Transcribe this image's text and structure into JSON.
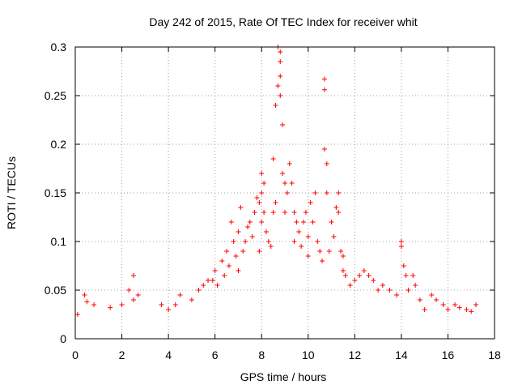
{
  "chart_data": {
    "type": "scatter",
    "title": "Day 242 of 2015, Rate Of TEC Index for receiver whit",
    "xlabel": "GPS time / hours",
    "ylabel": "ROTI / TECUs",
    "xlim": [
      0,
      18
    ],
    "ylim": [
      0,
      0.3
    ],
    "x_ticks": [
      0,
      2,
      4,
      6,
      8,
      10,
      12,
      14,
      16,
      18
    ],
    "y_ticks": [
      0,
      0.05,
      0.1,
      0.15,
      0.2,
      0.25,
      0.3
    ],
    "x_tick_labels": [
      "0",
      "2",
      "4",
      "6",
      "8",
      "10",
      "12",
      "14",
      "16",
      "18"
    ],
    "y_tick_labels": [
      "0",
      "0.05",
      "0.1",
      "0.15",
      "0.2",
      "0.25",
      "0.3"
    ],
    "grid": true,
    "marker": "+",
    "marker_color": "#ff0000",
    "series": [
      {
        "name": "ROTI",
        "x": [
          0.1,
          0.4,
          0.5,
          0.8,
          1.5,
          2.0,
          2.3,
          2.5,
          2.5,
          2.7,
          3.7,
          4.0,
          4.3,
          4.5,
          5.0,
          5.3,
          5.5,
          5.7,
          5.9,
          6.0,
          6.1,
          6.3,
          6.4,
          6.5,
          6.6,
          6.7,
          6.8,
          6.9,
          7.0,
          7.0,
          7.1,
          7.2,
          7.3,
          7.4,
          7.5,
          7.6,
          7.7,
          7.8,
          7.9,
          7.9,
          8.0,
          8.0,
          8.0,
          8.1,
          8.1,
          8.2,
          8.3,
          8.4,
          8.5,
          8.5,
          8.6,
          8.6,
          8.7,
          8.7,
          8.8,
          8.8,
          8.8,
          8.8,
          8.9,
          8.9,
          9.0,
          9.0,
          9.1,
          9.2,
          9.3,
          9.4,
          9.4,
          9.5,
          9.6,
          9.7,
          9.8,
          9.9,
          10.0,
          10.0,
          10.1,
          10.2,
          10.3,
          10.4,
          10.5,
          10.6,
          10.7,
          10.7,
          10.7,
          10.8,
          10.8,
          10.9,
          11.0,
          11.1,
          11.2,
          11.3,
          11.3,
          11.4,
          11.5,
          11.5,
          11.6,
          11.8,
          12.0,
          12.2,
          12.4,
          12.6,
          12.8,
          13.0,
          13.2,
          13.5,
          13.8,
          14.0,
          14.0,
          14.1,
          14.2,
          14.3,
          14.5,
          14.6,
          14.8,
          15.0,
          15.3,
          15.5,
          15.8,
          16.0,
          16.3,
          16.5,
          16.8,
          17.0,
          17.2
        ],
        "y": [
          0.025,
          0.045,
          0.038,
          0.035,
          0.032,
          0.035,
          0.05,
          0.065,
          0.04,
          0.045,
          0.035,
          0.03,
          0.035,
          0.045,
          0.04,
          0.05,
          0.055,
          0.06,
          0.06,
          0.07,
          0.055,
          0.08,
          0.065,
          0.09,
          0.075,
          0.12,
          0.1,
          0.085,
          0.11,
          0.07,
          0.135,
          0.09,
          0.1,
          0.115,
          0.12,
          0.105,
          0.13,
          0.145,
          0.14,
          0.09,
          0.17,
          0.15,
          0.12,
          0.16,
          0.13,
          0.11,
          0.1,
          0.095,
          0.13,
          0.185,
          0.14,
          0.24,
          0.26,
          0.3,
          0.295,
          0.285,
          0.27,
          0.25,
          0.22,
          0.17,
          0.16,
          0.13,
          0.15,
          0.18,
          0.16,
          0.13,
          0.1,
          0.12,
          0.11,
          0.095,
          0.12,
          0.13,
          0.105,
          0.085,
          0.14,
          0.12,
          0.15,
          0.1,
          0.09,
          0.08,
          0.267,
          0.256,
          0.195,
          0.18,
          0.15,
          0.09,
          0.12,
          0.105,
          0.135,
          0.15,
          0.13,
          0.09,
          0.085,
          0.07,
          0.065,
          0.055,
          0.06,
          0.065,
          0.07,
          0.065,
          0.06,
          0.05,
          0.055,
          0.05,
          0.045,
          0.1,
          0.095,
          0.075,
          0.065,
          0.05,
          0.065,
          0.055,
          0.04,
          0.03,
          0.045,
          0.04,
          0.035,
          0.03,
          0.035,
          0.032,
          0.03,
          0.028,
          0.035
        ]
      }
    ]
  }
}
